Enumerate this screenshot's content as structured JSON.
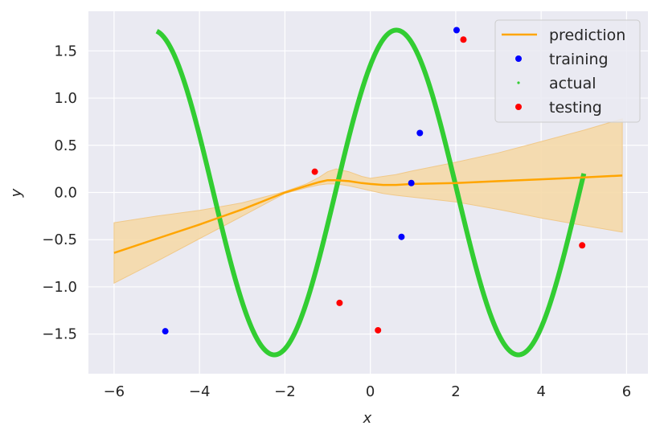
{
  "chart_data": {
    "type": "line",
    "xlabel": "x",
    "ylabel": "y",
    "xlim": [
      -6.6,
      6.5
    ],
    "ylim": [
      -1.92,
      1.92
    ],
    "xticks": [
      -6,
      -4,
      -2,
      0,
      2,
      4,
      6
    ],
    "xtick_labels": [
      "−6",
      "−4",
      "−2",
      "0",
      "2",
      "4",
      "6"
    ],
    "yticks": [
      -1.5,
      -1.0,
      -0.5,
      0.0,
      0.5,
      1.0,
      1.5
    ],
    "ytick_labels": [
      "−1.5",
      "−1.0",
      "−0.5",
      "0.0",
      "0.5",
      "1.0",
      "1.5"
    ],
    "grid": true,
    "legend_position": "top-right",
    "colors": {
      "background": "#eaeaf2",
      "grid": "#ffffff",
      "prediction": "#ffa500",
      "band": "#f5d9a8",
      "training": "#0000ff",
      "actual": "#32cd32",
      "testing": "#ff0000"
    },
    "actual_curve": {
      "x_range": [
        -5.0,
        5.0
      ],
      "formula_description": "y = 1.72 * sin(1.1 * x + 0.9)"
    },
    "series": [
      {
        "name": "prediction",
        "x": [
          -6,
          -5,
          -4,
          -3.5,
          -3,
          -2.5,
          -2,
          -1.5,
          -1.2,
          -1.0,
          -0.8,
          -0.5,
          -0.2,
          0.0,
          0.3,
          0.6,
          1.0,
          2.0,
          3.0,
          4.0,
          5.0,
          5.9
        ],
        "values": [
          -0.64,
          -0.49,
          -0.34,
          -0.26,
          -0.18,
          -0.09,
          0.0,
          0.07,
          0.11,
          0.13,
          0.13,
          0.12,
          0.1,
          0.09,
          0.08,
          0.08,
          0.09,
          0.1,
          0.12,
          0.14,
          0.16,
          0.18
        ],
        "lower": [
          -0.96,
          -0.73,
          -0.49,
          -0.37,
          -0.25,
          -0.13,
          -0.01,
          0.05,
          0.08,
          0.09,
          0.09,
          0.07,
          0.04,
          0.02,
          -0.01,
          -0.03,
          -0.05,
          -0.1,
          -0.18,
          -0.27,
          -0.35,
          -0.42
        ],
        "upper": [
          -0.32,
          -0.25,
          -0.19,
          -0.15,
          -0.11,
          -0.05,
          0.01,
          0.09,
          0.16,
          0.22,
          0.25,
          0.22,
          0.17,
          0.15,
          0.17,
          0.19,
          0.23,
          0.32,
          0.42,
          0.54,
          0.66,
          0.78
        ]
      },
      {
        "name": "training",
        "x": [
          -4.8,
          0.73,
          0.96,
          1.16,
          2.02
        ],
        "values": [
          -1.47,
          -0.47,
          0.1,
          0.63,
          1.72
        ]
      },
      {
        "name": "actual",
        "x_range": [
          -5.0,
          5.0
        ]
      },
      {
        "name": "testing",
        "x": [
          -1.3,
          -0.72,
          0.18,
          2.18,
          4.96
        ],
        "values": [
          0.22,
          -1.17,
          -1.46,
          1.62,
          -0.56
        ]
      }
    ]
  }
}
